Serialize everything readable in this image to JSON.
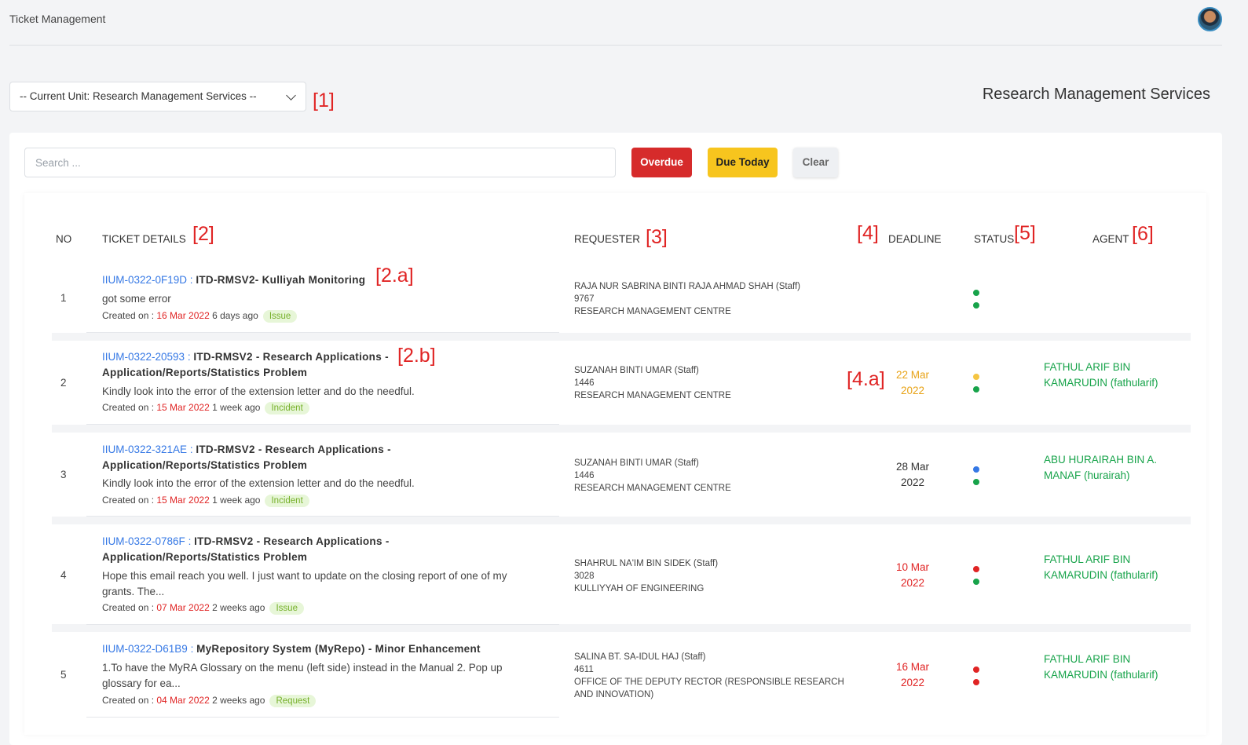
{
  "app": {
    "title": "Ticket Management"
  },
  "unit": {
    "select_label": "-- Current Unit: Research Management Services --",
    "heading": "Research Management Services"
  },
  "annotations": {
    "a1": "[1]",
    "a2": "[2]",
    "a3": "[3]",
    "a4": "[4]",
    "a5": "[5]",
    "a6": "[6]",
    "a2a": "[2.a]",
    "a2b": "[2.b]",
    "a4a": "[4.a]"
  },
  "search": {
    "placeholder": "Search ..."
  },
  "filters": {
    "overdue": "Overdue",
    "due_today": "Due Today",
    "clear": "Clear"
  },
  "table": {
    "headers": {
      "no": "NO",
      "details": "TICKET DETAILS",
      "requester": "REQUESTER",
      "deadline": "DEADLINE",
      "status": "STATUS",
      "agent": "AGENT"
    },
    "rows": [
      {
        "no": "1",
        "id": "IIUM-0322-0F19D",
        "sep": " : ",
        "name": "ITD-RMSV2- Kulliyah Monitoring",
        "desc": "got some error",
        "created_label": "Created on : ",
        "created_date": "16 Mar 2022",
        "created_ago": " 6 days ago",
        "badge": "Issue",
        "requester_name": "RAJA NUR SABRINA BINTI RAJA AHMAD SHAH (Staff)",
        "requester_ext": "9767",
        "requester_dept": "RESEARCH MANAGEMENT CENTRE",
        "deadline": "",
        "agent": "",
        "dots": [
          "#17a34a",
          "#17a34a"
        ]
      },
      {
        "no": "2",
        "id": "IIUM-0322-20593",
        "sep": " : ",
        "name": "ITD-RMSV2 - Research Applications - Application/Reports/Statistics Problem",
        "desc": "Kindly look into the error of the extension letter and do the needful.",
        "created_label": "Created on : ",
        "created_date": "15 Mar 2022",
        "created_ago": " 1 week ago",
        "badge": "Incident",
        "requester_name": "SUZANAH BINTI UMAR (Staff)",
        "requester_ext": "1446",
        "requester_dept": "RESEARCH MANAGEMENT CENTRE",
        "deadline": "22 Mar 2022",
        "deadline_color": "#e8a317",
        "agent": "FATHUL ARIF BIN KAMARUDIN (fathularif)",
        "dots": [
          "#f5c542",
          "#17a34a"
        ]
      },
      {
        "no": "3",
        "id": "IIUM-0322-321AE",
        "sep": " : ",
        "name": "ITD-RMSV2 - Research Applications - Application/Reports/Statistics Problem",
        "desc": "Kindly look into the error of the extension letter and do the needful.",
        "created_label": "Created on : ",
        "created_date": "15 Mar 2022",
        "created_ago": " 1 week ago",
        "badge": "Incident",
        "requester_name": "SUZANAH BINTI UMAR (Staff)",
        "requester_ext": "1446",
        "requester_dept": "RESEARCH MANAGEMENT CENTRE",
        "deadline": "28 Mar 2022",
        "deadline_color": "#333333",
        "agent": "ABU HURAIRAH BIN A. MANAF (hurairah)",
        "dots": [
          "#3578e5",
          "#17a34a"
        ]
      },
      {
        "no": "4",
        "id": "IIUM-0322-0786F",
        "sep": " : ",
        "name": "ITD-RMSV2 - Research Applications - Application/Reports/Statistics Problem",
        "desc": "Hope this email reach you well. I just want to update on the closing report of one of my grants. The...",
        "created_label": "Created on : ",
        "created_date": "07 Mar 2022",
        "created_ago": " 2 weeks ago",
        "badge": "Issue",
        "requester_name": "SHAHRUL NA'IM BIN SIDEK (Staff)",
        "requester_ext": "3028",
        "requester_dept": "KULLIYYAH OF ENGINEERING",
        "deadline": "10 Mar 2022",
        "deadline_color": "#e02424",
        "agent": "FATHUL ARIF BIN KAMARUDIN (fathularif)",
        "dots": [
          "#e02424",
          "#17a34a"
        ]
      },
      {
        "no": "5",
        "id": "IIUM-0322-D61B9",
        "sep": " : ",
        "name": "MyRepository System (MyRepo) - Minor Enhancement",
        "desc": "1.To have the MyRA Glossary on the menu (left side) instead in the Manual 2. Pop up glossary for ea...",
        "created_label": "Created on : ",
        "created_date": "04 Mar 2022",
        "created_ago": " 2 weeks ago",
        "badge": "Request",
        "requester_name": "SALINA BT. SA-IDUL HAJ (Staff)",
        "requester_ext": "4611",
        "requester_dept": "OFFICE OF THE DEPUTY RECTOR (RESPONSIBLE RESEARCH AND INNOVATION)",
        "deadline": "16 Mar 2022",
        "deadline_color": "#e02424",
        "agent": "FATHUL ARIF BIN KAMARUDIN (fathularif)",
        "dots": [
          "#e02424",
          "#e02424"
        ]
      }
    ]
  }
}
